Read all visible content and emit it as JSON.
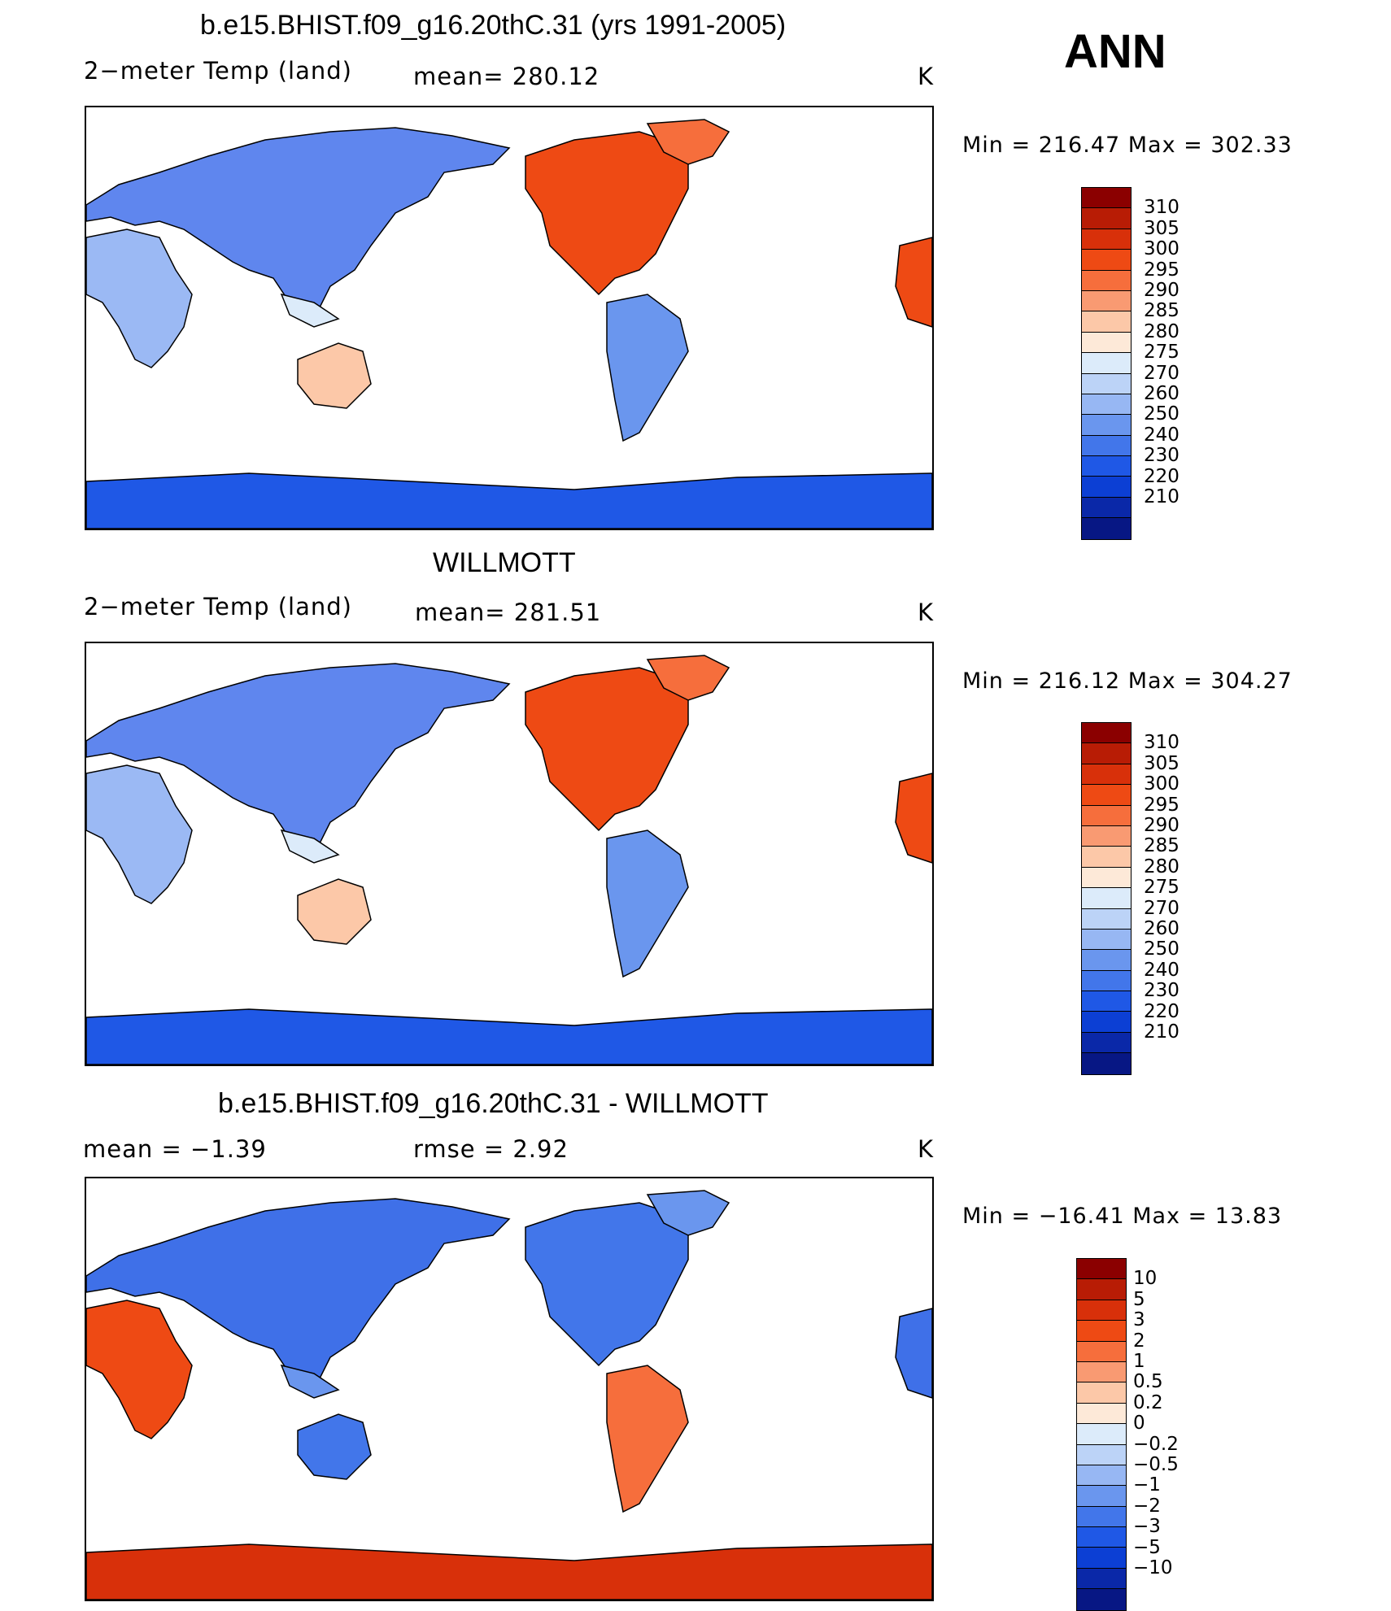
{
  "season": "ANN",
  "panels": [
    {
      "title": "b.e15.BHIST.f09_g16.20thC.31 (yrs 1991-2005)",
      "left_label": "2−meter Temp (land)",
      "center_label": "mean= 280.12",
      "units": "K",
      "minmax": "Min = 216.47 Max = 302.33",
      "colorbar": "abs"
    },
    {
      "title": "WILLMOTT",
      "left_label": "2−meter Temp (land)",
      "center_label": "mean= 281.51",
      "units": "K",
      "minmax": "Min = 216.12 Max = 304.27",
      "colorbar": "abs"
    },
    {
      "title": "b.e15.BHIST.f09_g16.20thC.31 - WILLMOTT",
      "left_label": "mean =   −1.39",
      "center_label": "rmse =    2.92",
      "units": "K",
      "minmax": "Min = −16.41 Max =  13.83",
      "colorbar": "diff"
    }
  ],
  "colorbars": {
    "abs": {
      "labels": [
        "310",
        "305",
        "300",
        "295",
        "290",
        "285",
        "280",
        "275",
        "270",
        "260",
        "250",
        "240",
        "230",
        "220",
        "210"
      ],
      "colors": [
        "#8b0000",
        "#b81c05",
        "#d8300a",
        "#ee4a14",
        "#f66e3c",
        "#f99a72",
        "#fcc8a8",
        "#fde9d8",
        "#dcebfa",
        "#bcd3f7",
        "#97b7f3",
        "#6a96ee",
        "#4276ea",
        "#1f58e6",
        "#0c3fd4",
        "#0a28a8",
        "#071784"
      ]
    },
    "diff": {
      "labels": [
        "10",
        "5",
        "3",
        "2",
        "1",
        "0.5",
        "0.2",
        "0",
        "−0.2",
        "−0.5",
        "−1",
        "−2",
        "−3",
        "−5",
        "−10"
      ],
      "colors": [
        "#8b0000",
        "#b81c05",
        "#d8300a",
        "#ee4a14",
        "#f66e3c",
        "#f99a72",
        "#fcc8a8",
        "#fde9d8",
        "#dcebfa",
        "#bcd3f7",
        "#97b7f3",
        "#6a96ee",
        "#4276ea",
        "#1f58e6",
        "#0c3fd4",
        "#0a28a8",
        "#071784"
      ]
    }
  }
}
